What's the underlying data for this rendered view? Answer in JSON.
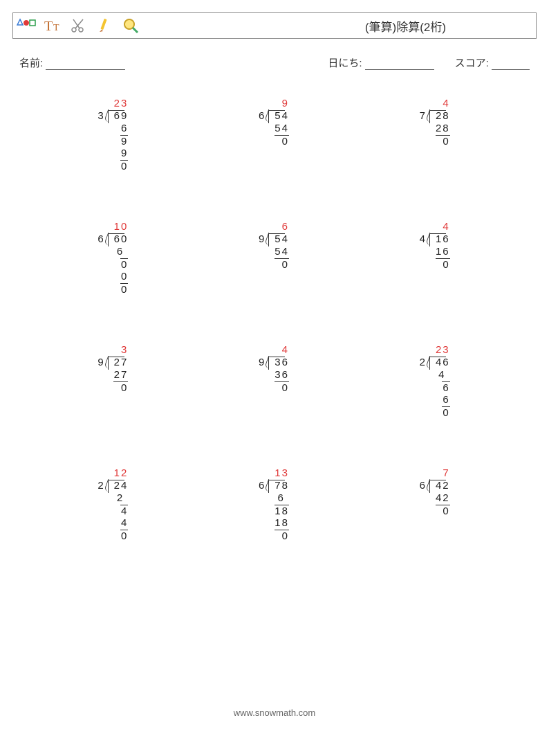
{
  "colors": {
    "quotient": "#e03a3a",
    "text": "#333333"
  },
  "title": "(筆算)除算(2桁)",
  "meta": {
    "name_label": "名前:",
    "date_label": "日にち:",
    "score_label": "スコア:",
    "name_underline_w": 115,
    "date_underline_w": 100,
    "score_underline_w": 55
  },
  "font_size": 15,
  "line_height": 18,
  "char_width": 9.5,
  "problems": [
    {
      "divisor": "3",
      "dividend": "69",
      "quotient": "23",
      "work": [
        {
          "t": "6",
          "bar": false
        },
        {
          "t": "9",
          "bar": true,
          "w": 1
        },
        {
          "t": "9",
          "bar": false
        },
        {
          "t": "0",
          "bar": true,
          "w": 1
        }
      ]
    },
    {
      "divisor": "6",
      "dividend": "54",
      "quotient": "9",
      "work": [
        {
          "t": "54",
          "bar": false
        },
        {
          "t": "0",
          "bar": true,
          "w": 2
        }
      ]
    },
    {
      "divisor": "7",
      "dividend": "28",
      "quotient": "4",
      "work": [
        {
          "t": "28",
          "bar": false
        },
        {
          "t": "0",
          "bar": true,
          "w": 2
        }
      ]
    },
    {
      "divisor": "6",
      "dividend": "60",
      "quotient": "10",
      "work": [
        {
          "t": "6",
          "pad": 1,
          "bar": false
        },
        {
          "t": "0",
          "bar": true,
          "w": 1,
          "woff": 0
        },
        {
          "t": "0",
          "bar": false
        },
        {
          "t": "0",
          "bar": true,
          "w": 1
        }
      ]
    },
    {
      "divisor": "9",
      "dividend": "54",
      "quotient": "6",
      "work": [
        {
          "t": "54",
          "bar": false
        },
        {
          "t": "0",
          "bar": true,
          "w": 2
        }
      ]
    },
    {
      "divisor": "4",
      "dividend": "16",
      "quotient": "4",
      "work": [
        {
          "t": "16",
          "bar": false
        },
        {
          "t": "0",
          "bar": true,
          "w": 2
        }
      ]
    },
    {
      "divisor": "9",
      "dividend": "27",
      "quotient": "3",
      "work": [
        {
          "t": "27",
          "bar": false
        },
        {
          "t": "0",
          "bar": true,
          "w": 2
        }
      ]
    },
    {
      "divisor": "9",
      "dividend": "36",
      "quotient": "4",
      "work": [
        {
          "t": "36",
          "bar": false
        },
        {
          "t": "0",
          "bar": true,
          "w": 2
        }
      ]
    },
    {
      "divisor": "2",
      "dividend": "46",
      "quotient": "23",
      "work": [
        {
          "t": "4",
          "pad": 1,
          "bar": false
        },
        {
          "t": "6",
          "bar": true,
          "w": 1,
          "woff": 0
        },
        {
          "t": "6",
          "bar": false
        },
        {
          "t": "0",
          "bar": true,
          "w": 1
        }
      ]
    },
    {
      "divisor": "2",
      "dividend": "24",
      "quotient": "12",
      "work": [
        {
          "t": "2",
          "pad": 1,
          "bar": false
        },
        {
          "t": "4",
          "bar": true,
          "w": 1,
          "woff": 0
        },
        {
          "t": "4",
          "bar": false
        },
        {
          "t": "0",
          "bar": true,
          "w": 1
        }
      ]
    },
    {
      "divisor": "6",
      "dividend": "78",
      "quotient": "13",
      "work": [
        {
          "t": "6",
          "pad": 1,
          "bar": false
        },
        {
          "t": "18",
          "bar": true,
          "w": 2
        },
        {
          "t": "18",
          "bar": false
        },
        {
          "t": "0",
          "bar": true,
          "w": 2
        }
      ]
    },
    {
      "divisor": "6",
      "dividend": "42",
      "quotient": "7",
      "work": [
        {
          "t": "42",
          "bar": false
        },
        {
          "t": "0",
          "bar": true,
          "w": 2
        }
      ]
    }
  ],
  "footer": "www.snowmath.com",
  "toolbar_icons": [
    "shapes-icon",
    "text-icon",
    "scissors-icon",
    "pencil-icon",
    "magnifier-icon"
  ]
}
